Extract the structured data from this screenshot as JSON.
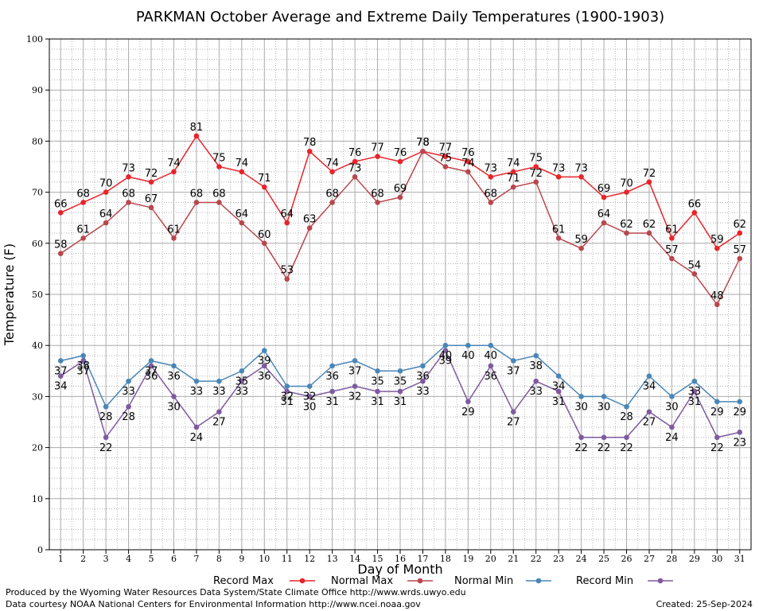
{
  "chart_data": {
    "type": "line",
    "title": "PARKMAN October Average and Extreme Daily Temperatures (1900-1903)",
    "xlabel": "Day of Month",
    "ylabel": "Temperature (F)",
    "x": [
      1,
      2,
      3,
      4,
      5,
      6,
      7,
      8,
      9,
      10,
      11,
      12,
      13,
      14,
      15,
      16,
      17,
      18,
      19,
      20,
      21,
      22,
      23,
      24,
      25,
      26,
      27,
      28,
      29,
      30,
      31
    ],
    "xlim": [
      0.5,
      31.5
    ],
    "ylim": [
      0,
      100
    ],
    "yticks": [
      0,
      10,
      20,
      30,
      40,
      50,
      60,
      70,
      80,
      90,
      100
    ],
    "grid": true,
    "legend_position": "bottom",
    "series": [
      {
        "name": "Record Max",
        "color": "#e8242a",
        "label_pos": "above",
        "values": [
          66,
          68,
          70,
          73,
          72,
          74,
          81,
          75,
          74,
          71,
          64,
          78,
          74,
          76,
          77,
          76,
          78,
          77,
          76,
          73,
          74,
          75,
          73,
          73,
          69,
          70,
          72,
          61,
          66,
          59,
          62
        ]
      },
      {
        "name": "Normal Max",
        "color": "#b9474e",
        "label_pos": "above",
        "values": [
          58,
          61,
          64,
          68,
          67,
          61,
          68,
          68,
          64,
          60,
          53,
          63,
          68,
          73,
          68,
          69,
          78,
          75,
          74,
          68,
          71,
          72,
          61,
          59,
          64,
          62,
          62,
          57,
          54,
          48,
          57
        ]
      },
      {
        "name": "Normal Min",
        "color": "#4a86b8",
        "label_pos": "below",
        "values": [
          37,
          38,
          28,
          33,
          37,
          36,
          33,
          33,
          35,
          39,
          32,
          32,
          36,
          37,
          35,
          35,
          36,
          40,
          40,
          40,
          37,
          38,
          34,
          30,
          30,
          28,
          34,
          30,
          33,
          29,
          29
        ]
      },
      {
        "name": "Record Min",
        "color": "#7e5aa0",
        "label_pos": "below",
        "values": [
          34,
          37,
          22,
          28,
          36,
          30,
          24,
          27,
          33,
          36,
          31,
          30,
          31,
          32,
          31,
          31,
          33,
          39,
          29,
          36,
          27,
          33,
          31,
          22,
          22,
          22,
          27,
          24,
          31,
          22,
          23
        ]
      }
    ]
  },
  "footer": {
    "produced_by": "Produced by the Wyoming Water Resources Data System/State Climate Office http://www.wrds.uwyo.edu",
    "courtesy": "Data courtesy NOAA National Centers for Environmental Information http://www.ncei.noaa.gov",
    "created": "Created:  25-Sep-2024"
  }
}
